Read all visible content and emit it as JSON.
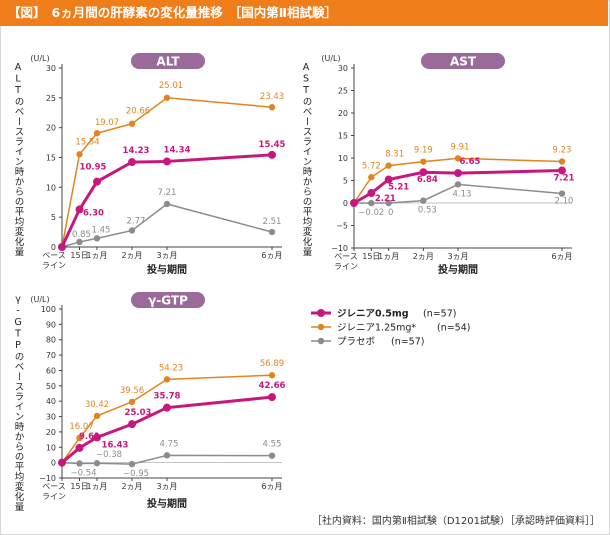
{
  "header": {
    "bracket": "【図】",
    "title": "6ヵ月間の肝酵素の変化量推移",
    "subtitle": "［国内第Ⅱ相試験］"
  },
  "source_note": "［社内資料：国内第Ⅱ相試験（D1201試験）［承認時評価資料］］",
  "legend": [
    {
      "name": "ジレニア0.5mg",
      "n": "(n=57)",
      "color": "#c8177c"
    },
    {
      "name": "ジレニア1.25mg*",
      "n": "(n=54)",
      "color": "#e2841c"
    },
    {
      "name": "プラセボ",
      "n": "(n=57)",
      "color": "#8c8c8c"
    }
  ],
  "colors": {
    "pink": "#c8177c",
    "orange": "#e2841c",
    "gray": "#8c8c8c",
    "pill": "#9a6a9b",
    "header": "#ef7d1a"
  },
  "chart_data": [
    {
      "type": "line",
      "title": "ALT",
      "unit": "(U/L)",
      "ylabel": "ALTのベースライン時からの平均変化量",
      "xlabel": "投与期間",
      "categories": [
        "ベースライン",
        "15日",
        "1ヵ月",
        "2ヵ月",
        "3ヵ月",
        "6ヵ月"
      ],
      "x_days": [
        0,
        15,
        30,
        60,
        90,
        180
      ],
      "ylim": [
        0,
        30
      ],
      "yticks": [
        0,
        5,
        10,
        15,
        20,
        25,
        30
      ],
      "series": [
        {
          "name": "ジレニア1.25mg*",
          "color": "#e2841c",
          "values": [
            0,
            15.54,
            19.07,
            20.66,
            25.01,
            23.43
          ],
          "labels": [
            "",
            "15.54",
            "19.07",
            "20.66",
            "25.01",
            "23.43"
          ]
        },
        {
          "name": "ジレニア0.5mg",
          "color": "#c8177c",
          "values": [
            0,
            6.3,
            10.95,
            14.23,
            14.34,
            15.45
          ],
          "labels": [
            "",
            "6.30",
            "10.95",
            "14.23",
            "14.34",
            "15.45"
          ]
        },
        {
          "name": "プラセボ",
          "color": "#8c8c8c",
          "values": [
            0,
            0.85,
            1.45,
            2.77,
            7.21,
            2.51
          ],
          "labels": [
            "",
            "0.85",
            "1.45",
            "2.77",
            "7.21",
            "2.51"
          ]
        }
      ]
    },
    {
      "type": "line",
      "title": "AST",
      "unit": "(U/L)",
      "ylabel": "ASTのベースライン時からの平均変化量",
      "xlabel": "投与期間",
      "categories": [
        "ベースライン",
        "15日",
        "1ヵ月",
        "2ヵ月",
        "3ヵ月",
        "6ヵ月"
      ],
      "x_days": [
        0,
        15,
        30,
        60,
        90,
        180
      ],
      "ylim": [
        -10,
        30
      ],
      "yticks": [
        -10,
        -5,
        0,
        5,
        10,
        15,
        20,
        25,
        30
      ],
      "series": [
        {
          "name": "ジレニア1.25mg*",
          "color": "#e2841c",
          "values": [
            0,
            5.72,
            8.31,
            9.19,
            9.91,
            9.23
          ],
          "labels": [
            "",
            "5.72",
            "8.31",
            "9.19",
            "9.91",
            "9.23"
          ]
        },
        {
          "name": "ジレニア0.5mg",
          "color": "#c8177c",
          "values": [
            0,
            2.21,
            5.21,
            6.84,
            6.65,
            7.21
          ],
          "labels": [
            "",
            "2.21",
            "5.21",
            "6.84",
            "6.65",
            "7.21"
          ]
        },
        {
          "name": "プラセボ",
          "color": "#8c8c8c",
          "values": [
            0,
            -0.02,
            0,
            0.53,
            4.13,
            2.1
          ],
          "labels": [
            "",
            "−0.02",
            "0",
            "0.53",
            "4.13",
            "2.10"
          ]
        }
      ]
    },
    {
      "type": "line",
      "title": "γ-GTP",
      "unit": "(U/L)",
      "ylabel": "γ-GTPのベースライン時からの平均変化量",
      "xlabel": "投与期間",
      "categories": [
        "ベースライン",
        "15日",
        "1ヵ月",
        "2ヵ月",
        "3ヵ月",
        "6ヵ月"
      ],
      "x_days": [
        0,
        15,
        30,
        60,
        90,
        180
      ],
      "ylim": [
        -10,
        100
      ],
      "yticks": [
        -10,
        0,
        10,
        20,
        30,
        40,
        50,
        60,
        70,
        80,
        90,
        100
      ],
      "series": [
        {
          "name": "ジレニア1.25mg*",
          "color": "#e2841c",
          "values": [
            0,
            16.07,
            30.42,
            39.56,
            54.23,
            56.89
          ],
          "labels": [
            "",
            "16.07",
            "30.42",
            "39.56",
            "54.23",
            "56.89"
          ]
        },
        {
          "name": "ジレニア0.5mg",
          "color": "#c8177c",
          "values": [
            0,
            9.61,
            16.43,
            25.03,
            35.78,
            42.66
          ],
          "labels": [
            "",
            "9.61",
            "16.43",
            "25.03",
            "35.78",
            "42.66"
          ]
        },
        {
          "name": "プラセボ",
          "color": "#8c8c8c",
          "values": [
            0,
            -0.54,
            -0.38,
            -0.95,
            4.75,
            4.55
          ],
          "labels": [
            "",
            "−0.54",
            "−0.38",
            "−0.95",
            "4.75",
            "4.55"
          ]
        }
      ]
    }
  ]
}
